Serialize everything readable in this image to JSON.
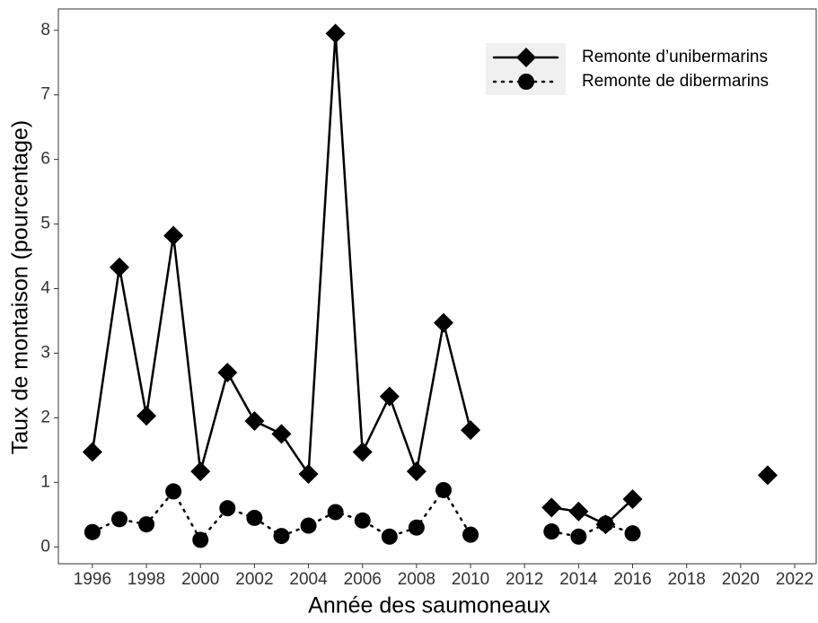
{
  "chart_data": {
    "type": "line",
    "x_label": "Année des saumoneaux",
    "y_label": "Taux de montaison (pourcentage)",
    "x": [
      1996,
      1997,
      1998,
      1999,
      2000,
      2001,
      2002,
      2003,
      2004,
      2005,
      2006,
      2007,
      2008,
      2009,
      2010,
      2011,
      2012,
      2013,
      2014,
      2015,
      2016,
      2017,
      2018,
      2019,
      2020,
      2021
    ],
    "series": [
      {
        "name": "Remonte d’unibermarins",
        "color": "#000000",
        "marker": "diamond",
        "dash": "solid",
        "values": [
          1.47,
          4.33,
          2.03,
          4.82,
          1.17,
          2.7,
          1.95,
          1.75,
          1.13,
          7.95,
          1.47,
          2.33,
          1.17,
          3.47,
          1.81,
          null,
          null,
          0.61,
          0.55,
          0.35,
          0.74,
          null,
          null,
          null,
          null,
          1.11
        ]
      },
      {
        "name": "Remonte de dibermarins",
        "color": "#000000",
        "marker": "circle",
        "dash": "dotted",
        "values": [
          0.23,
          0.43,
          0.35,
          0.86,
          0.11,
          0.6,
          0.45,
          0.17,
          0.33,
          0.54,
          0.41,
          0.16,
          0.3,
          0.88,
          0.19,
          null,
          null,
          0.24,
          0.16,
          0.36,
          0.21,
          null,
          null,
          null,
          null,
          null
        ]
      }
    ],
    "xlim": [
      1994.74,
      2022.83
    ],
    "ylim": [
      -0.26,
      8.33
    ],
    "xticks": [
      1996,
      1998,
      2000,
      2002,
      2004,
      2006,
      2008,
      2010,
      2012,
      2014,
      2016,
      2018,
      2020,
      2022
    ],
    "yticks": [
      0,
      1,
      2,
      3,
      4,
      5,
      6,
      7,
      8
    ],
    "grid": false,
    "legend": "top-right"
  }
}
